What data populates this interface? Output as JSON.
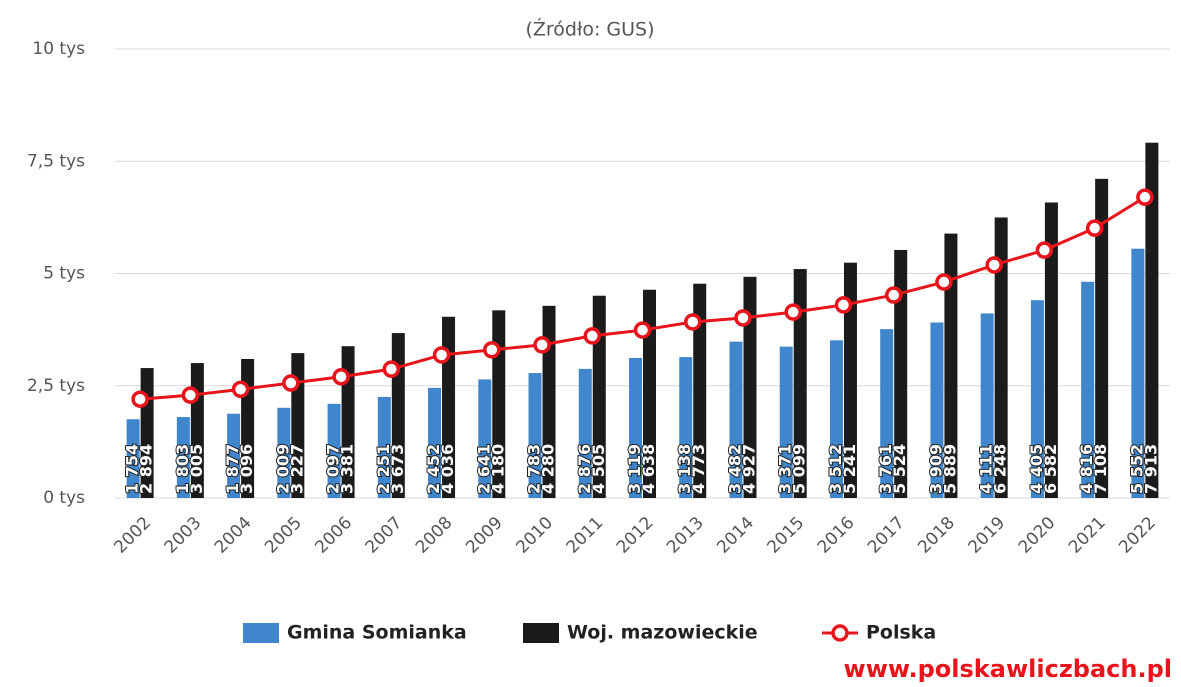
{
  "chart_data": {
    "type": "bar_line",
    "subtitle": "(Źródło: GUS)",
    "watermark": "www.polskawliczbach.pl",
    "categories": [
      "2002",
      "2003",
      "2004",
      "2005",
      "2006",
      "2007",
      "2008",
      "2009",
      "2010",
      "2011",
      "2012",
      "2013",
      "2014",
      "2015",
      "2016",
      "2017",
      "2018",
      "2019",
      "2020",
      "2021",
      "2022"
    ],
    "series": [
      {
        "name": "Gmina Somianka",
        "type": "bar",
        "color": "#3f86cc",
        "values": [
          1754,
          1803,
          1877,
          2009,
          2097,
          2251,
          2452,
          2641,
          2783,
          2876,
          3119,
          3138,
          3482,
          3371,
          3512,
          3761,
          3909,
          4111,
          4405,
          4816,
          5552
        ],
        "value_labels": [
          "1 754",
          "1 803",
          "1 877",
          "2 009",
          "2 097",
          "2 251",
          "2 452",
          "2 641",
          "2 783",
          "2 876",
          "3 119",
          "3 138",
          "3 482",
          "3 371",
          "3 512",
          "3 761",
          "3 909",
          "4 111",
          "4 405",
          "4 816",
          "5 552"
        ]
      },
      {
        "name": "Woj. mazowieckie",
        "type": "bar",
        "color": "#1b1b1b",
        "values": [
          2894,
          3005,
          3096,
          3227,
          3381,
          3673,
          4036,
          4180,
          4280,
          4505,
          4638,
          4773,
          4927,
          5099,
          5241,
          5524,
          5889,
          6248,
          6582,
          7108,
          7913
        ],
        "value_labels": [
          "2 894",
          "3 005",
          "3 096",
          "3 227",
          "3 381",
          "3 673",
          "4 036",
          "4 180",
          "4 280",
          "4 505",
          "4 638",
          "4 773",
          "4 927",
          "5 099",
          "5 241",
          "5 524",
          "5 889",
          "6 248",
          "6 582",
          "7 108",
          "7 913"
        ]
      },
      {
        "name": "Polska",
        "type": "line",
        "color": "#e8141b",
        "values": [
          2200,
          2290,
          2420,
          2560,
          2700,
          2870,
          3185,
          3300,
          3410,
          3610,
          3740,
          3920,
          4010,
          4140,
          4300,
          4520,
          4810,
          5190,
          5520,
          6010,
          6700
        ]
      }
    ],
    "ylim": [
      0,
      10000
    ],
    "yticks": [
      {
        "value": 0,
        "label": "0 tys"
      },
      {
        "value": 2500,
        "label": "2,5 tys"
      },
      {
        "value": 5000,
        "label": "5 tys"
      },
      {
        "value": 7500,
        "label": "7,5 tys"
      },
      {
        "value": 10000,
        "label": "10 tys"
      }
    ],
    "grid": true,
    "legend": "bottom"
  }
}
